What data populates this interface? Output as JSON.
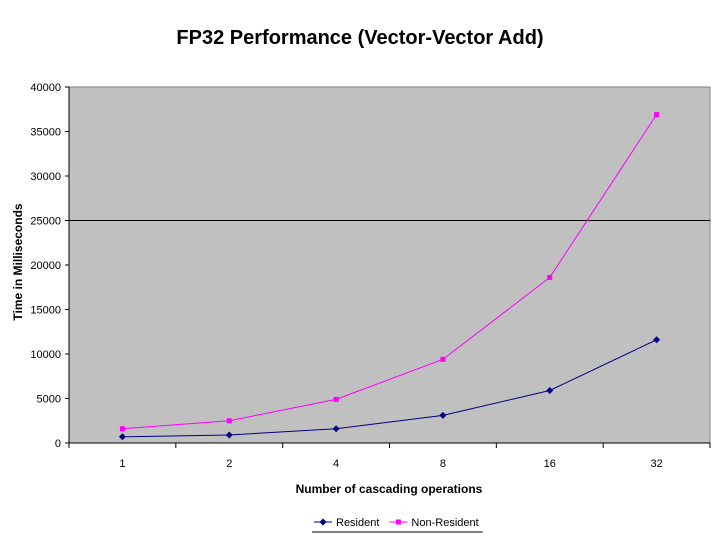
{
  "chart_data": {
    "type": "line",
    "title": "FP32 Performance (Vector-Vector Add)",
    "xlabel": "Number of cascading operations",
    "ylabel": "Time in Milliseconds",
    "categories": [
      "1",
      "2",
      "4",
      "8",
      "16",
      "32"
    ],
    "ylim": [
      0,
      40000
    ],
    "yticks": [
      "0",
      "5000",
      "10000",
      "15000",
      "20000",
      "25000",
      "30000",
      "35000",
      "40000"
    ],
    "grid": "horizontal line at 25000",
    "legend_position": "bottom",
    "series": [
      {
        "name": "Resident",
        "color": "#000080",
        "marker": "diamond",
        "values": [
          700,
          900,
          1600,
          3100,
          5900,
          11600
        ]
      },
      {
        "name": "Non-Resident",
        "color": "#ff00ff",
        "marker": "square",
        "values": [
          1600,
          2500,
          4900,
          9400,
          18600,
          36900
        ]
      }
    ],
    "plot_background": "#c0c0c0"
  }
}
